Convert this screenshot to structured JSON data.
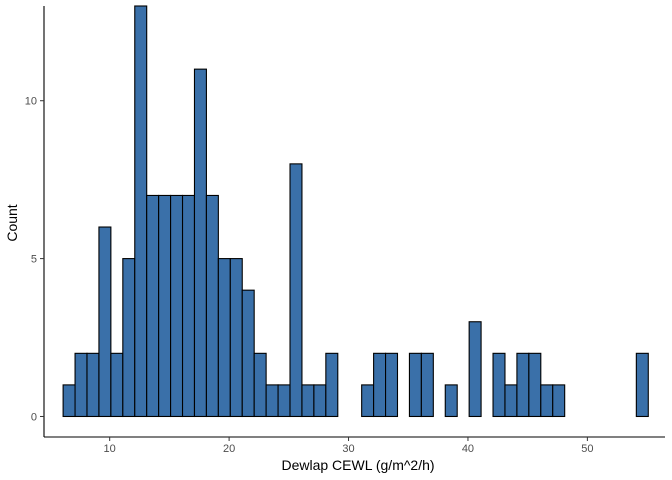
{
  "chart_data": {
    "type": "bar",
    "subtype": "histogram",
    "title": "",
    "xlabel": "Dewlap CEWL (g/m^2/h)",
    "ylabel": "Count",
    "xlim": [
      4.5,
      56.5
    ],
    "ylim": [
      -0.65,
      13.0
    ],
    "xticks": [
      10,
      20,
      30,
      40,
      50
    ],
    "yticks": [
      0,
      5,
      10
    ],
    "grid": false,
    "legend": "none",
    "bin_width": 1,
    "first_bin_center": 6.6,
    "counts": [
      1,
      2,
      2,
      6,
      2,
      5,
      13,
      7,
      7,
      7,
      7,
      11,
      7,
      5,
      5,
      4,
      2,
      1,
      1,
      8,
      1,
      1,
      2,
      0,
      0,
      1,
      2,
      2,
      0,
      2,
      2,
      0,
      1,
      0,
      3,
      0,
      2,
      1,
      2,
      2,
      1,
      1,
      0,
      0,
      0,
      0,
      0,
      0,
      2
    ],
    "colors": {
      "fill": "#3a70a9",
      "stroke": "#000000"
    }
  }
}
